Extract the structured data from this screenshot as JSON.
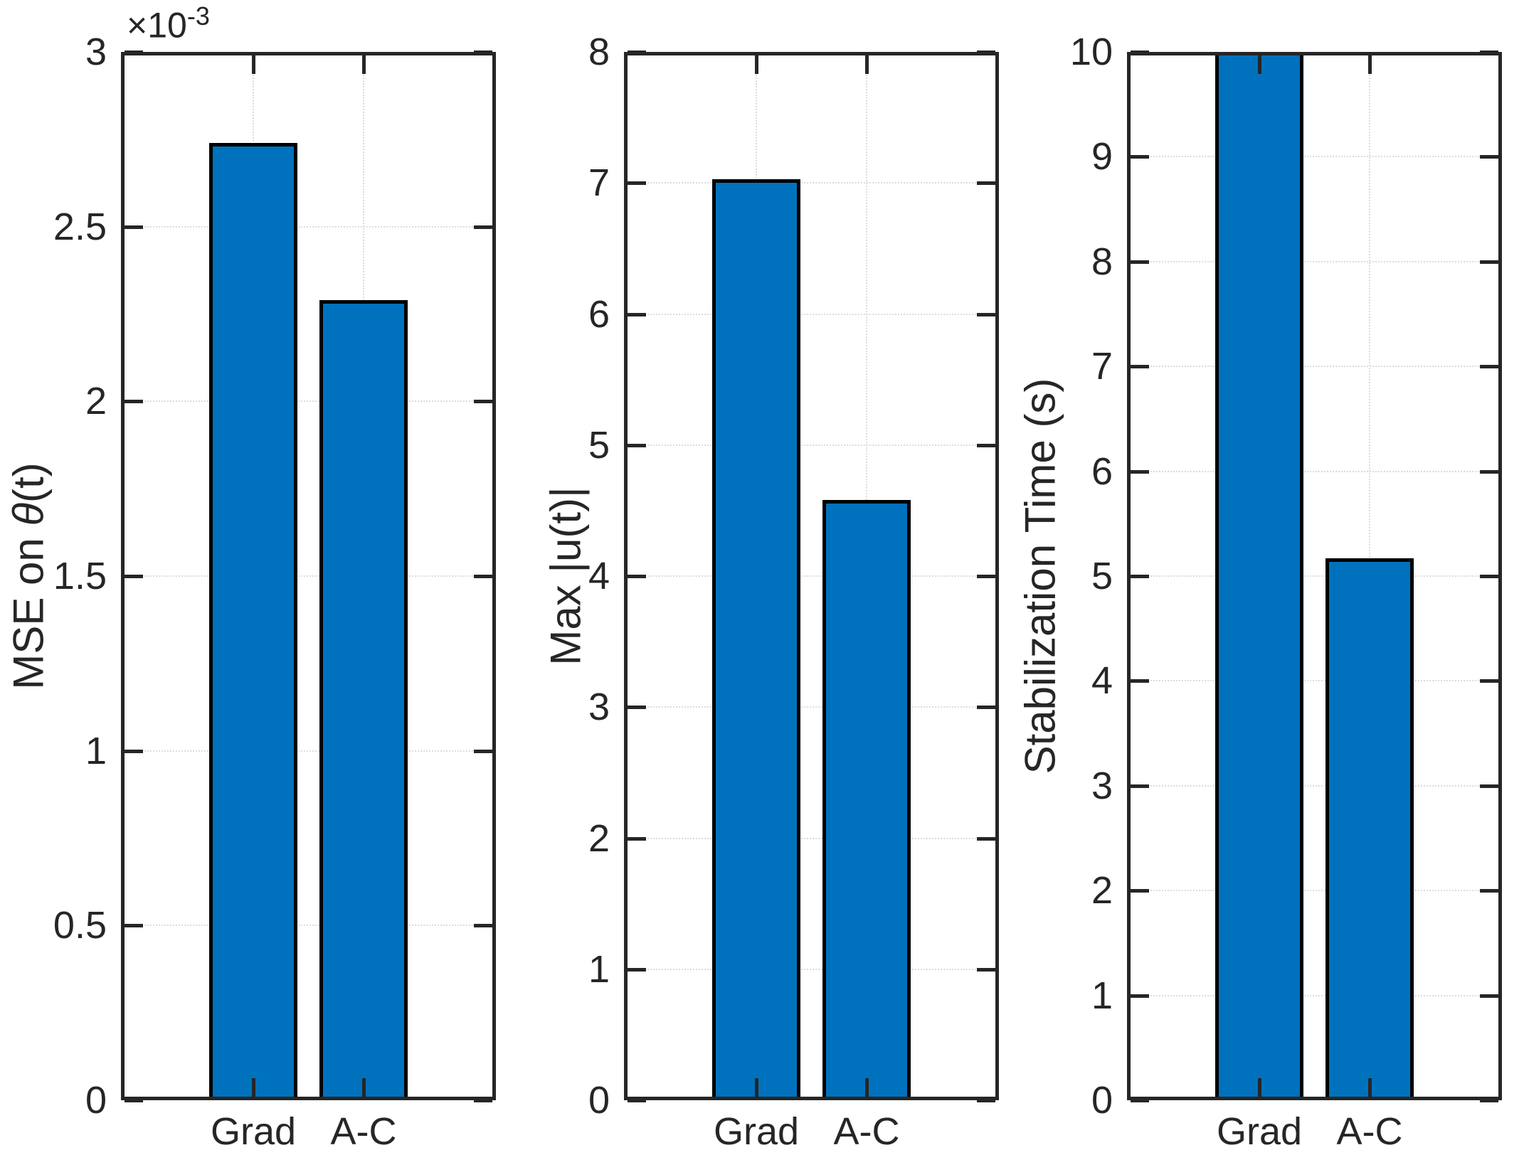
{
  "figure": {
    "background": "#ffffff",
    "bar_color": "#0072BD",
    "bar_edge_color": "#000000",
    "axis_color": "#262626",
    "grid_color": "#dcdcdc",
    "text_color": "#262626"
  },
  "chart_data": [
    {
      "type": "bar",
      "panel": "mse",
      "ylabel": "MSE on θ(t)",
      "scale_label": "×10",
      "scale_exponent": "-3",
      "categories": [
        "Grad",
        "A-C"
      ],
      "values": [
        2.74,
        2.29
      ],
      "value_scale": "1e-3",
      "ylim": [
        0,
        3
      ],
      "yticks": [
        0,
        0.5,
        1,
        1.5,
        2,
        2.5,
        3
      ],
      "ytick_labels": [
        "0",
        "0.5",
        "1",
        "1.5",
        "2",
        "2.5",
        "3"
      ],
      "grid": true,
      "legend": null
    },
    {
      "type": "bar",
      "panel": "max-u",
      "ylabel": "Max |u(t)|",
      "scale_label": null,
      "categories": [
        "Grad",
        "A-C"
      ],
      "values": [
        7.03,
        4.58
      ],
      "ylim": [
        0,
        8
      ],
      "yticks": [
        0,
        1,
        2,
        3,
        4,
        5,
        6,
        7,
        8
      ],
      "ytick_labels": [
        "0",
        "1",
        "2",
        "3",
        "4",
        "5",
        "6",
        "7",
        "8"
      ],
      "grid": true,
      "legend": null
    },
    {
      "type": "bar",
      "panel": "stabilization-time",
      "ylabel": "Stabilization Time (s)",
      "scale_label": null,
      "categories": [
        "Grad",
        "A-C"
      ],
      "values": [
        10,
        5.17
      ],
      "ylim": [
        0,
        10
      ],
      "yticks": [
        0,
        1,
        2,
        3,
        4,
        5,
        6,
        7,
        8,
        9,
        10
      ],
      "ytick_labels": [
        "0",
        "1",
        "2",
        "3",
        "4",
        "5",
        "6",
        "7",
        "8",
        "9",
        "10"
      ],
      "grid": true,
      "legend": null
    }
  ]
}
